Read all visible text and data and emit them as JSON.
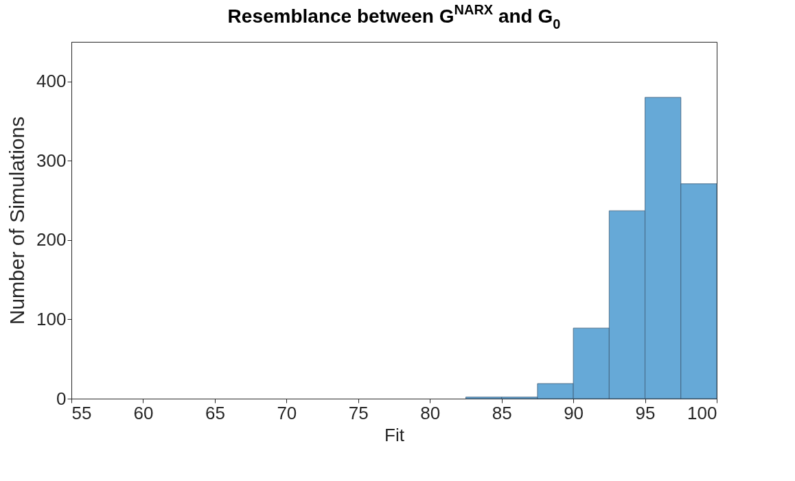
{
  "chart_data": {
    "type": "histogram",
    "title": "Resemblance between G$^{NARX}$ and G$_{0}$",
    "xlabel": "Fit",
    "ylabel": "Number of Simulations",
    "bins": [
      82.5,
      85,
      87.5,
      90,
      92.5,
      95,
      97.5,
      100
    ],
    "values": [
      2,
      2,
      19,
      89,
      237,
      380,
      271
    ],
    "color": "#66a9d7",
    "xlim": [
      55,
      100
    ],
    "xticks": [
      55,
      60,
      65,
      70,
      75,
      80,
      85,
      90,
      95,
      100
    ],
    "ylim": [
      0,
      450
    ],
    "yticks": [
      0,
      100,
      200,
      300,
      400
    ],
    "grid": false
  }
}
